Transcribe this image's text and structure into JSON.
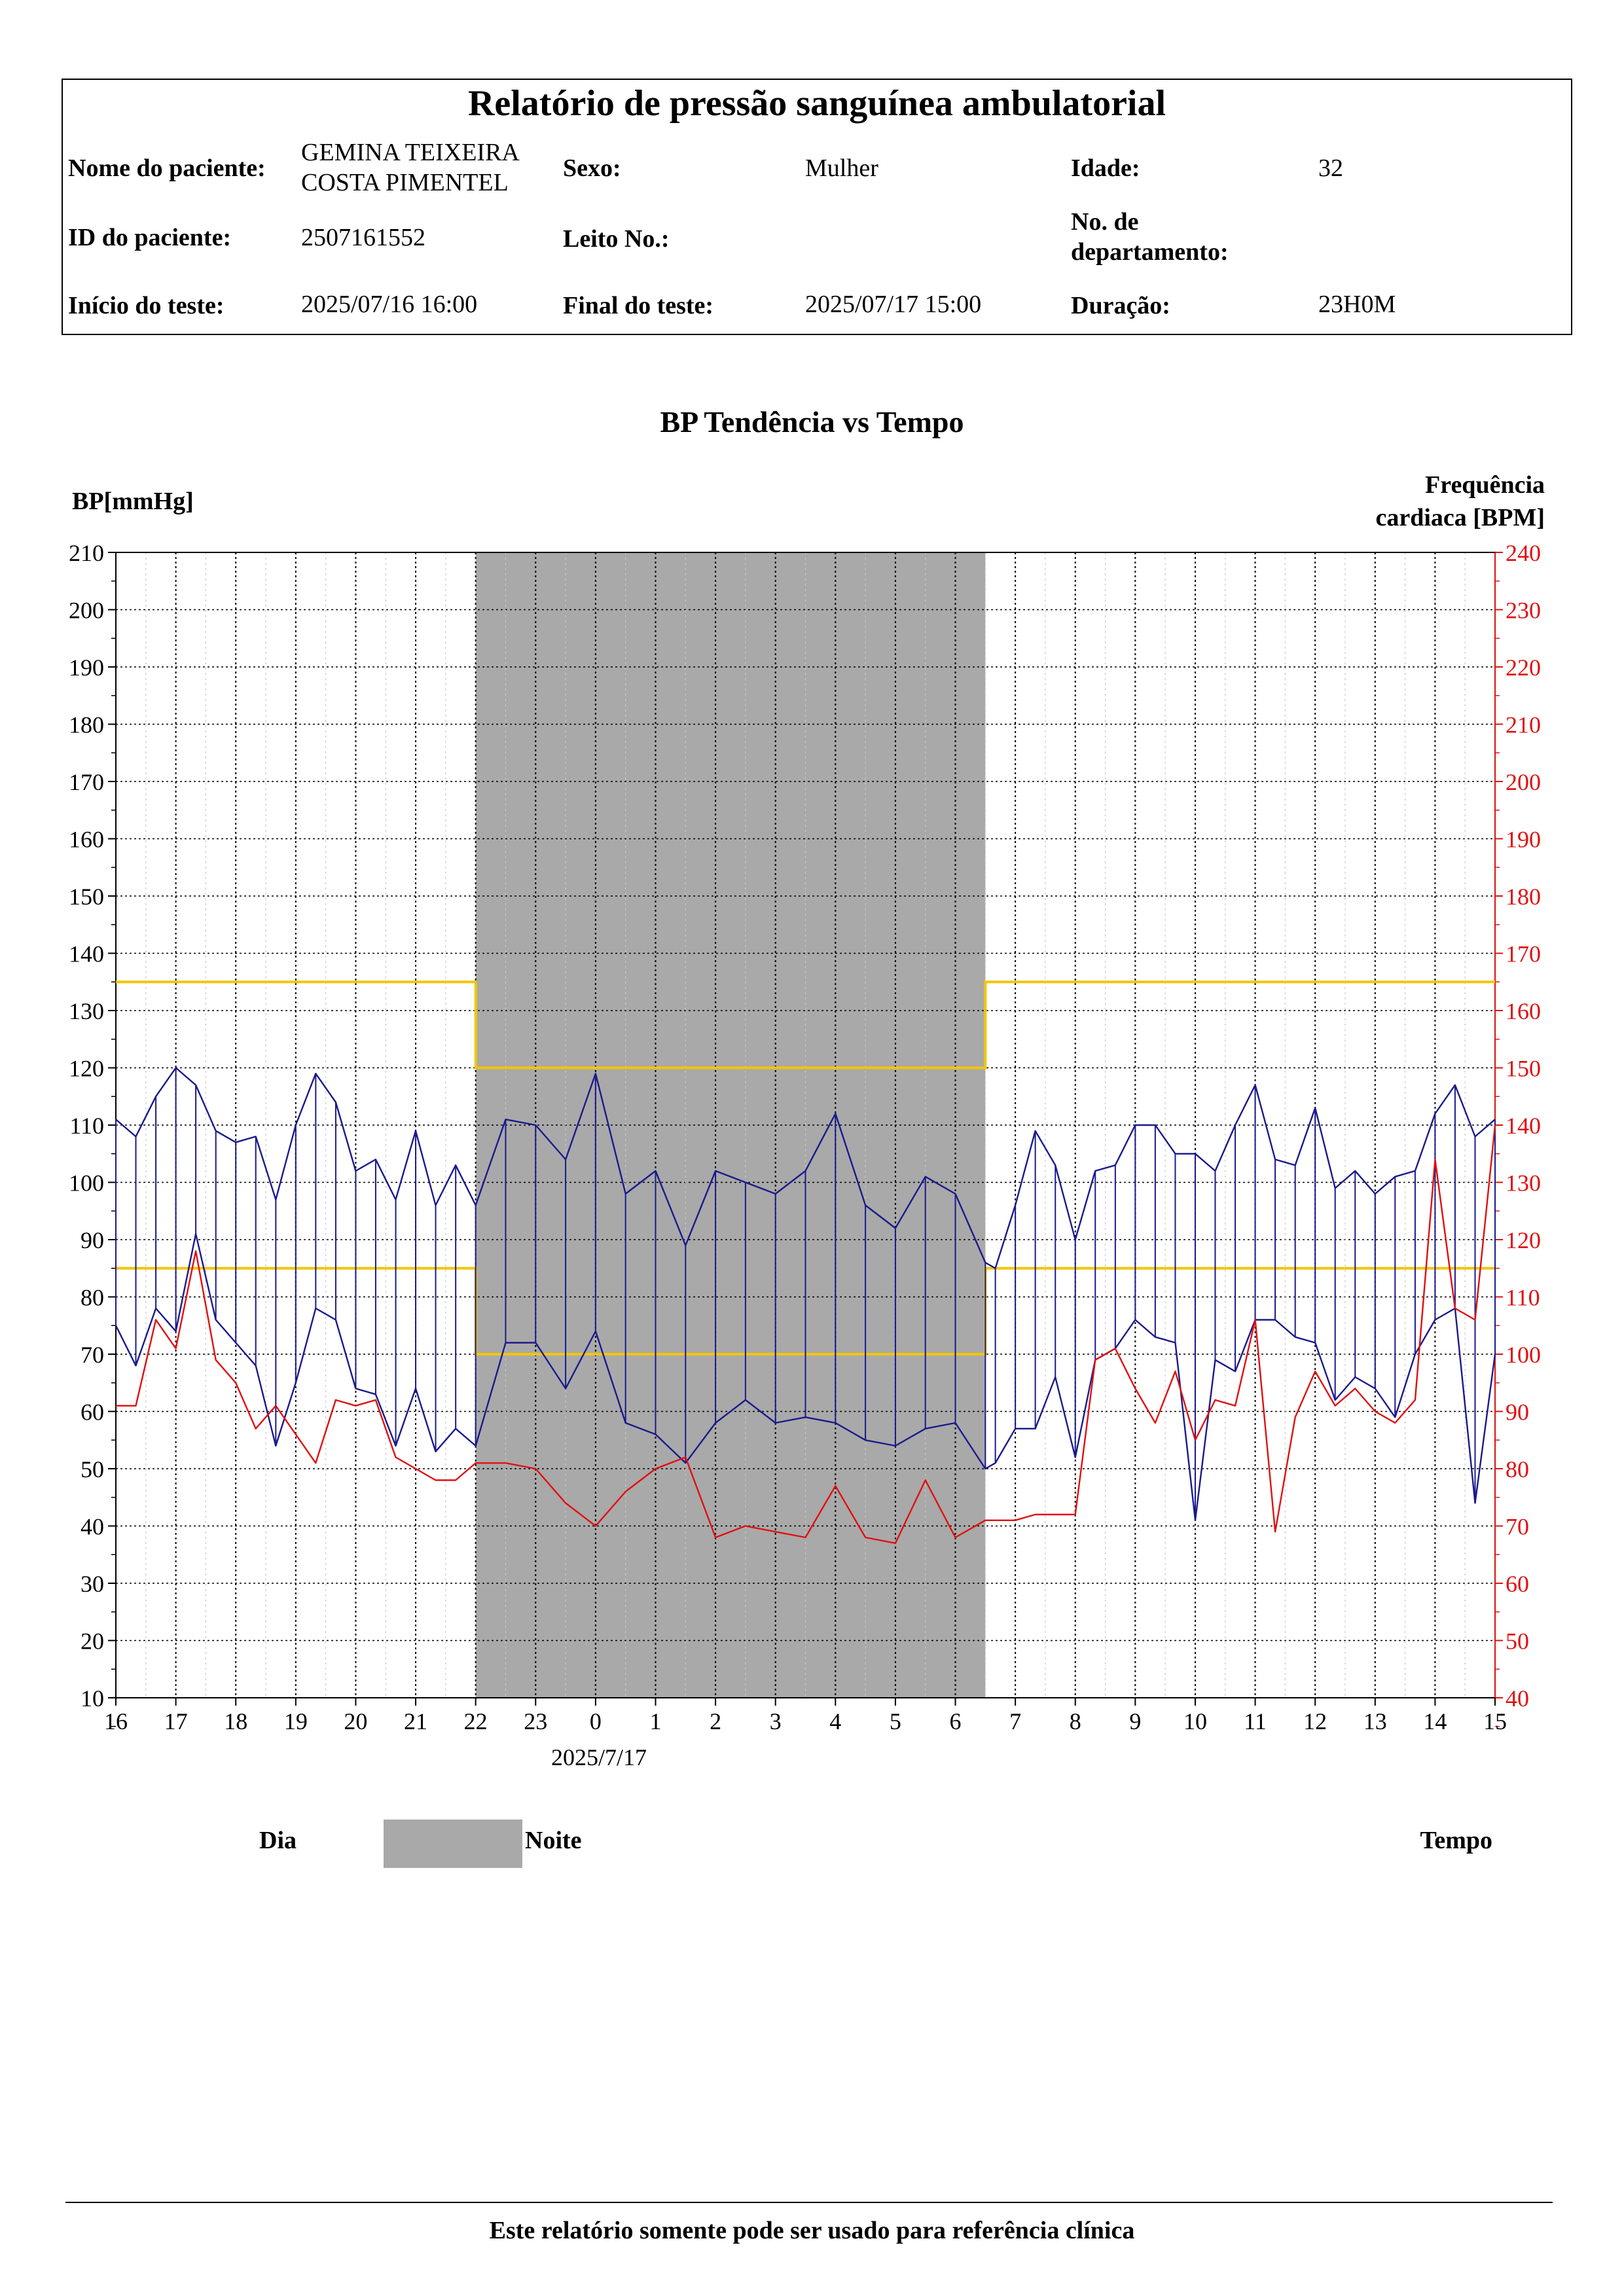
{
  "header": {
    "title": "Relatório de pressão sanguínea ambulatorial",
    "patient_name_label": "Nome do paciente:",
    "patient_name_line1": "GEMINA TEIXEIRA",
    "patient_name_line2": "COSTA PIMENTEL",
    "sex_label": "Sexo:",
    "sex_value": "Mulher",
    "age_label": "Idade:",
    "age_value": "32",
    "patient_id_label": "ID do paciente:",
    "patient_id_value": "2507161552",
    "bed_label": "Leito No.:",
    "bed_value": "",
    "dept_label_line1": "No. de",
    "dept_label_line2": "departamento:",
    "dept_value": "",
    "start_label": "Início do teste:",
    "start_value": "2025/07/16 16:00",
    "end_label": "Final do teste:",
    "end_value": "2025/07/17 15:00",
    "duration_label": "Duração:",
    "duration_value": "23H0M"
  },
  "legend": {
    "day": "Dia",
    "night": "Noite",
    "time": "Tempo"
  },
  "footer": {
    "note": "Este relatório somente pode ser usado para referência clínica"
  },
  "colors": {
    "bp": "#1a1a8c",
    "hr": "#e01010",
    "threshold": "#f2c600",
    "night": "#a9a9a9"
  },
  "chart_data": {
    "type": "line",
    "title": "BP Tendência vs Tempo",
    "ylabel": "BP[mmHg]",
    "y2label_line1": "Frequência",
    "y2label_line2": "cardiaca [BPM]",
    "xlabel": "",
    "date_label": "2025/7/17",
    "ylim": [
      10,
      210
    ],
    "y2lim": [
      40,
      240
    ],
    "xlim": [
      16,
      39
    ],
    "y_ticks": [
      10,
      20,
      30,
      40,
      50,
      60,
      70,
      80,
      90,
      100,
      110,
      120,
      130,
      140,
      150,
      160,
      170,
      180,
      190,
      200,
      210
    ],
    "y2_ticks": [
      40,
      50,
      60,
      70,
      80,
      90,
      100,
      110,
      120,
      130,
      140,
      150,
      160,
      170,
      180,
      190,
      200,
      210,
      220,
      230,
      240
    ],
    "x_tick_labels": [
      "16",
      "17",
      "18",
      "19",
      "20",
      "21",
      "22",
      "23",
      "0",
      "1",
      "2",
      "3",
      "4",
      "5",
      "6",
      "7",
      "8",
      "9",
      "10",
      "11",
      "12",
      "13",
      "14",
      "15"
    ],
    "night_period": [
      22,
      30.5
    ],
    "grid": true,
    "thresholds": {
      "day_systolic": 135,
      "day_diastolic": 85,
      "night_systolic": 120,
      "night_diastolic": 70
    },
    "x": [
      16.0,
      16.333,
      16.667,
      17.0,
      17.333,
      17.667,
      18.0,
      18.333,
      18.667,
      19.0,
      19.333,
      19.667,
      20.0,
      20.333,
      20.667,
      21.0,
      21.333,
      21.667,
      22.0,
      22.5,
      23.0,
      23.5,
      24.0,
      24.5,
      25.0,
      25.5,
      26.0,
      26.5,
      27.0,
      27.5,
      28.0,
      28.5,
      29.0,
      29.5,
      30.0,
      30.5,
      30.667,
      31.0,
      31.333,
      31.667,
      32.0,
      32.333,
      32.667,
      33.0,
      33.333,
      33.667,
      34.0,
      34.333,
      34.667,
      35.0,
      35.333,
      35.667,
      36.0,
      36.333,
      36.667,
      37.0,
      37.333,
      37.667,
      38.0,
      38.333,
      38.667,
      39.0
    ],
    "series": [
      {
        "name": "",
        "role": "systolic",
        "values": [
          111,
          108,
          115,
          120,
          117,
          109,
          107,
          108,
          97,
          110,
          119,
          114,
          102,
          104,
          97,
          109,
          96,
          103,
          96,
          111,
          110,
          104,
          119,
          98,
          102,
          89,
          102,
          100,
          98,
          102,
          112,
          96,
          92,
          101,
          98,
          86,
          85,
          96,
          109,
          103,
          90,
          102,
          103,
          110,
          110,
          105,
          105,
          102,
          110,
          117,
          104,
          103,
          113,
          99,
          102,
          98,
          101,
          102,
          112,
          117,
          108,
          111
        ]
      },
      {
        "name": "",
        "role": "diastolic",
        "values": [
          75,
          68,
          78,
          74,
          91,
          76,
          72,
          68,
          54,
          65,
          78,
          76,
          64,
          63,
          54,
          64,
          53,
          57,
          54,
          72,
          72,
          64,
          74,
          58,
          56,
          51,
          58,
          62,
          58,
          59,
          58,
          55,
          54,
          57,
          58,
          50,
          51,
          57,
          57,
          66,
          52,
          69,
          71,
          76,
          73,
          72,
          41,
          69,
          67,
          76,
          76,
          73,
          72,
          62,
          66,
          64,
          59,
          70,
          76,
          78,
          44,
          70
        ]
      },
      {
        "name": "",
        "role": "heart_rate",
        "axis": "right",
        "values": [
          91,
          91,
          106,
          101,
          118,
          99,
          95,
          87,
          91,
          86,
          81,
          92,
          91,
          92,
          82,
          80,
          78,
          78,
          81,
          81,
          80,
          74,
          70,
          76,
          80,
          82,
          68,
          70,
          69,
          68,
          77,
          68,
          67,
          78,
          68,
          71,
          71,
          71,
          72,
          72,
          72,
          99,
          101,
          94,
          88,
          97,
          85,
          92,
          91,
          106,
          69,
          89,
          97,
          91,
          94,
          90,
          88,
          92,
          134,
          108,
          106,
          140
        ]
      }
    ]
  }
}
